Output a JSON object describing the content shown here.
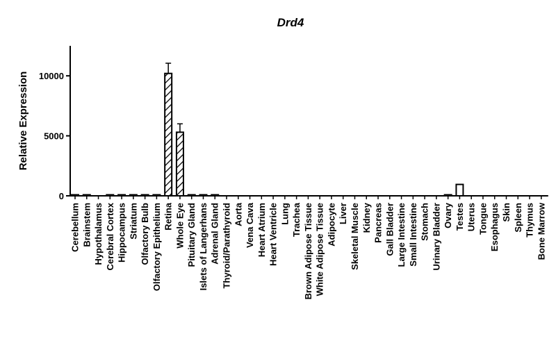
{
  "chart_data": {
    "type": "bar",
    "title": "Drd4",
    "xlabel": "",
    "ylabel": "Relative Expression",
    "ylim": [
      0,
      12500
    ],
    "yticks": [
      0,
      5000,
      10000
    ],
    "ytick_labels": [
      "0",
      "5000",
      "10000"
    ],
    "categories": [
      "Cerebellum",
      "Brainstem",
      "Hypothalamus",
      "Cerebral Cortex",
      "Hippocampus",
      "Striatum",
      "Olfactory Bulb",
      "Olfactory Epithelium",
      "Retina",
      "Whole Eye",
      "Pituitary Gland",
      "Islets of Langerhans",
      "Adrenal Gland",
      "Thyroid/Parathyroid",
      "Aorta",
      "Vena Cava",
      "Heart Atrium",
      "Heart Ventricle",
      "Lung",
      "Trachea",
      "Brown Adipose Tissue",
      "White Adipose Tissue",
      "Adipocyte",
      "Liver",
      "Skeletal Muscle",
      "Kidney",
      "Pancreas",
      "Gall Bladder",
      "Large Intestine",
      "Small Intestine",
      "Stomach",
      "Urinary Bladder",
      "Ovary",
      "Testes",
      "Uterus",
      "Tongue",
      "Esophagus",
      "Skin",
      "Spleen",
      "Thymus",
      "Bone Marrow"
    ],
    "values": [
      20,
      10,
      0,
      20,
      10,
      10,
      10,
      10,
      10200,
      5300,
      40,
      20,
      40,
      0,
      0,
      0,
      0,
      0,
      0,
      0,
      0,
      0,
      0,
      0,
      0,
      0,
      0,
      0,
      0,
      0,
      0,
      0,
      60,
      950,
      0,
      0,
      0,
      0,
      0,
      0,
      0
    ],
    "errors": [
      0,
      0,
      0,
      0,
      0,
      0,
      0,
      0,
      850,
      700,
      0,
      0,
      0,
      0,
      0,
      0,
      0,
      0,
      0,
      0,
      0,
      0,
      0,
      0,
      0,
      0,
      0,
      0,
      0,
      0,
      0,
      0,
      0,
      0,
      0,
      0,
      0,
      0,
      0,
      0,
      0
    ],
    "bar_styles": [
      "none",
      "none",
      "none",
      "none",
      "none",
      "none",
      "none",
      "none",
      "hatched",
      "hatched",
      "none",
      "none",
      "none",
      "none",
      "none",
      "none",
      "none",
      "none",
      "none",
      "none",
      "none",
      "none",
      "none",
      "none",
      "none",
      "none",
      "none",
      "none",
      "none",
      "none",
      "none",
      "none",
      "open",
      "open",
      "none",
      "none",
      "none",
      "none",
      "none",
      "none",
      "none"
    ],
    "legend": "none",
    "grid": false
  }
}
